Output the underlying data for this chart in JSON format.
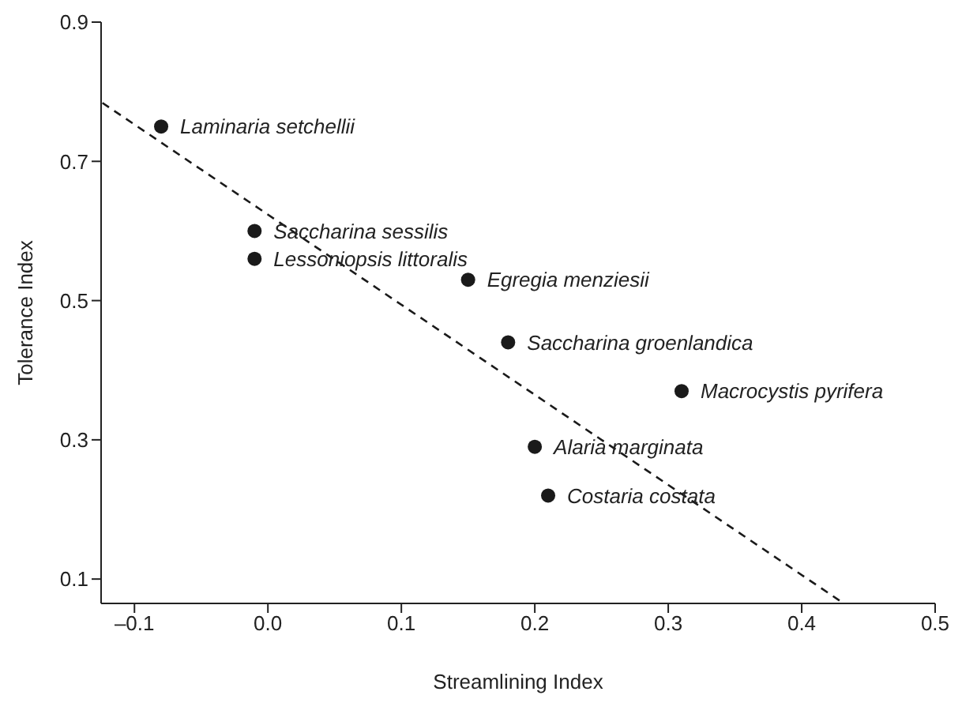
{
  "chart_data": {
    "type": "scatter",
    "xlabel": "Streamlining Index",
    "ylabel": "Tolerance Index",
    "xlim": [
      -0.125,
      0.5
    ],
    "ylim": [
      0.065,
      0.9
    ],
    "xticks": [
      {
        "value": -0.1,
        "label": "–0.1"
      },
      {
        "value": 0,
        "label": "0.0"
      },
      0.1,
      0.2,
      0.3,
      0.4,
      0.5
    ],
    "yticks": [
      0.1,
      0.3,
      0.5,
      0.7,
      0.9
    ],
    "series": [
      {
        "color": "#1a1a1a",
        "marker": "circle",
        "x": [
          -0.08,
          -0.01,
          -0.01,
          0.15,
          0.18,
          0.31,
          0.2,
          0.21
        ],
        "values": [
          0.75,
          0.6,
          0.56,
          0.53,
          0.44,
          0.37,
          0.29,
          0.22
        ]
      },
      {
        "type": "line",
        "color": "#1a1a1a",
        "line_style": "dashed",
        "x": [
          -0.124,
          0.43
        ],
        "values": [
          0.784,
          0.067
        ]
      }
    ],
    "annotations": [
      {
        "text": "Laminaria setchellii",
        "x": -0.08,
        "y": 0.75
      },
      {
        "text": "Saccharina sessilis",
        "x": -0.01,
        "y": 0.6
      },
      {
        "text": "Lessoniopsis littoralis",
        "x": -0.01,
        "y": 0.56
      },
      {
        "text": "Egregia menziesii",
        "x": 0.15,
        "y": 0.53
      },
      {
        "text": "Saccharina groenlandica",
        "x": 0.18,
        "y": 0.44
      },
      {
        "text": "Macrocystis pyrifera",
        "x": 0.31,
        "y": 0.37
      },
      {
        "text": "Alaria marginata",
        "x": 0.2,
        "y": 0.29
      },
      {
        "text": "Costaria costata",
        "x": 0.21,
        "y": 0.22
      }
    ]
  }
}
